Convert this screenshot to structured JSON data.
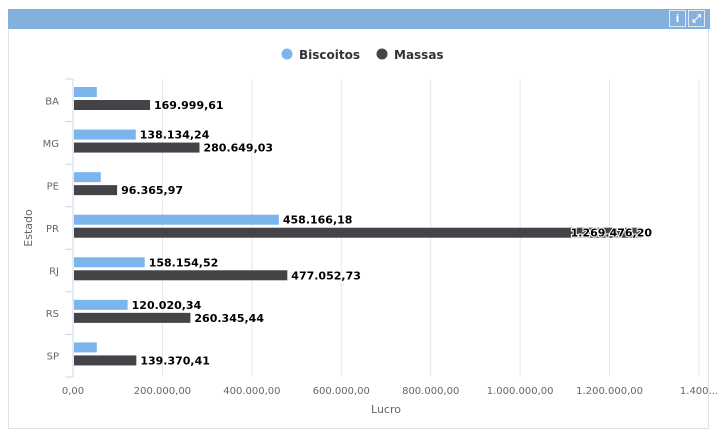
{
  "header": {
    "info_icon": "info-icon",
    "expand_icon": "expand-icon"
  },
  "chart_data": {
    "type": "bar",
    "orientation": "horizontal",
    "categories": [
      "BA",
      "MG",
      "PE",
      "PR",
      "RJ",
      "RS",
      "SP"
    ],
    "series": [
      {
        "name": "Biscoitos",
        "color": "#7cb5ec",
        "values": [
          51000,
          138134.24,
          60000,
          458166.18,
          158154.52,
          120020.34,
          51000
        ],
        "labels": [
          null,
          "138.134,24",
          null,
          "458.166,18",
          "158.154,52",
          "120.020,34",
          null
        ]
      },
      {
        "name": "Massas",
        "color": "#434348",
        "values": [
          169999.61,
          280649.03,
          96365.97,
          1269476.2,
          477052.73,
          260345.44,
          139370.41
        ],
        "labels": [
          "169.999,61",
          "280.649,03",
          "96.365,97",
          "1.269.476,20",
          "477.052,73",
          "260.345,44",
          "139.370,41"
        ]
      }
    ],
    "xlabel": "Lucro",
    "ylabel": "Estado",
    "xlim": [
      0,
      1400000
    ],
    "xticks": [
      "0,00",
      "200.000,00",
      "400.000,00",
      "600.000,00",
      "800.000,00",
      "1.000.000,00",
      "1.200.000,00",
      "1.400..."
    ],
    "grid": true,
    "legend": "top-center"
  }
}
